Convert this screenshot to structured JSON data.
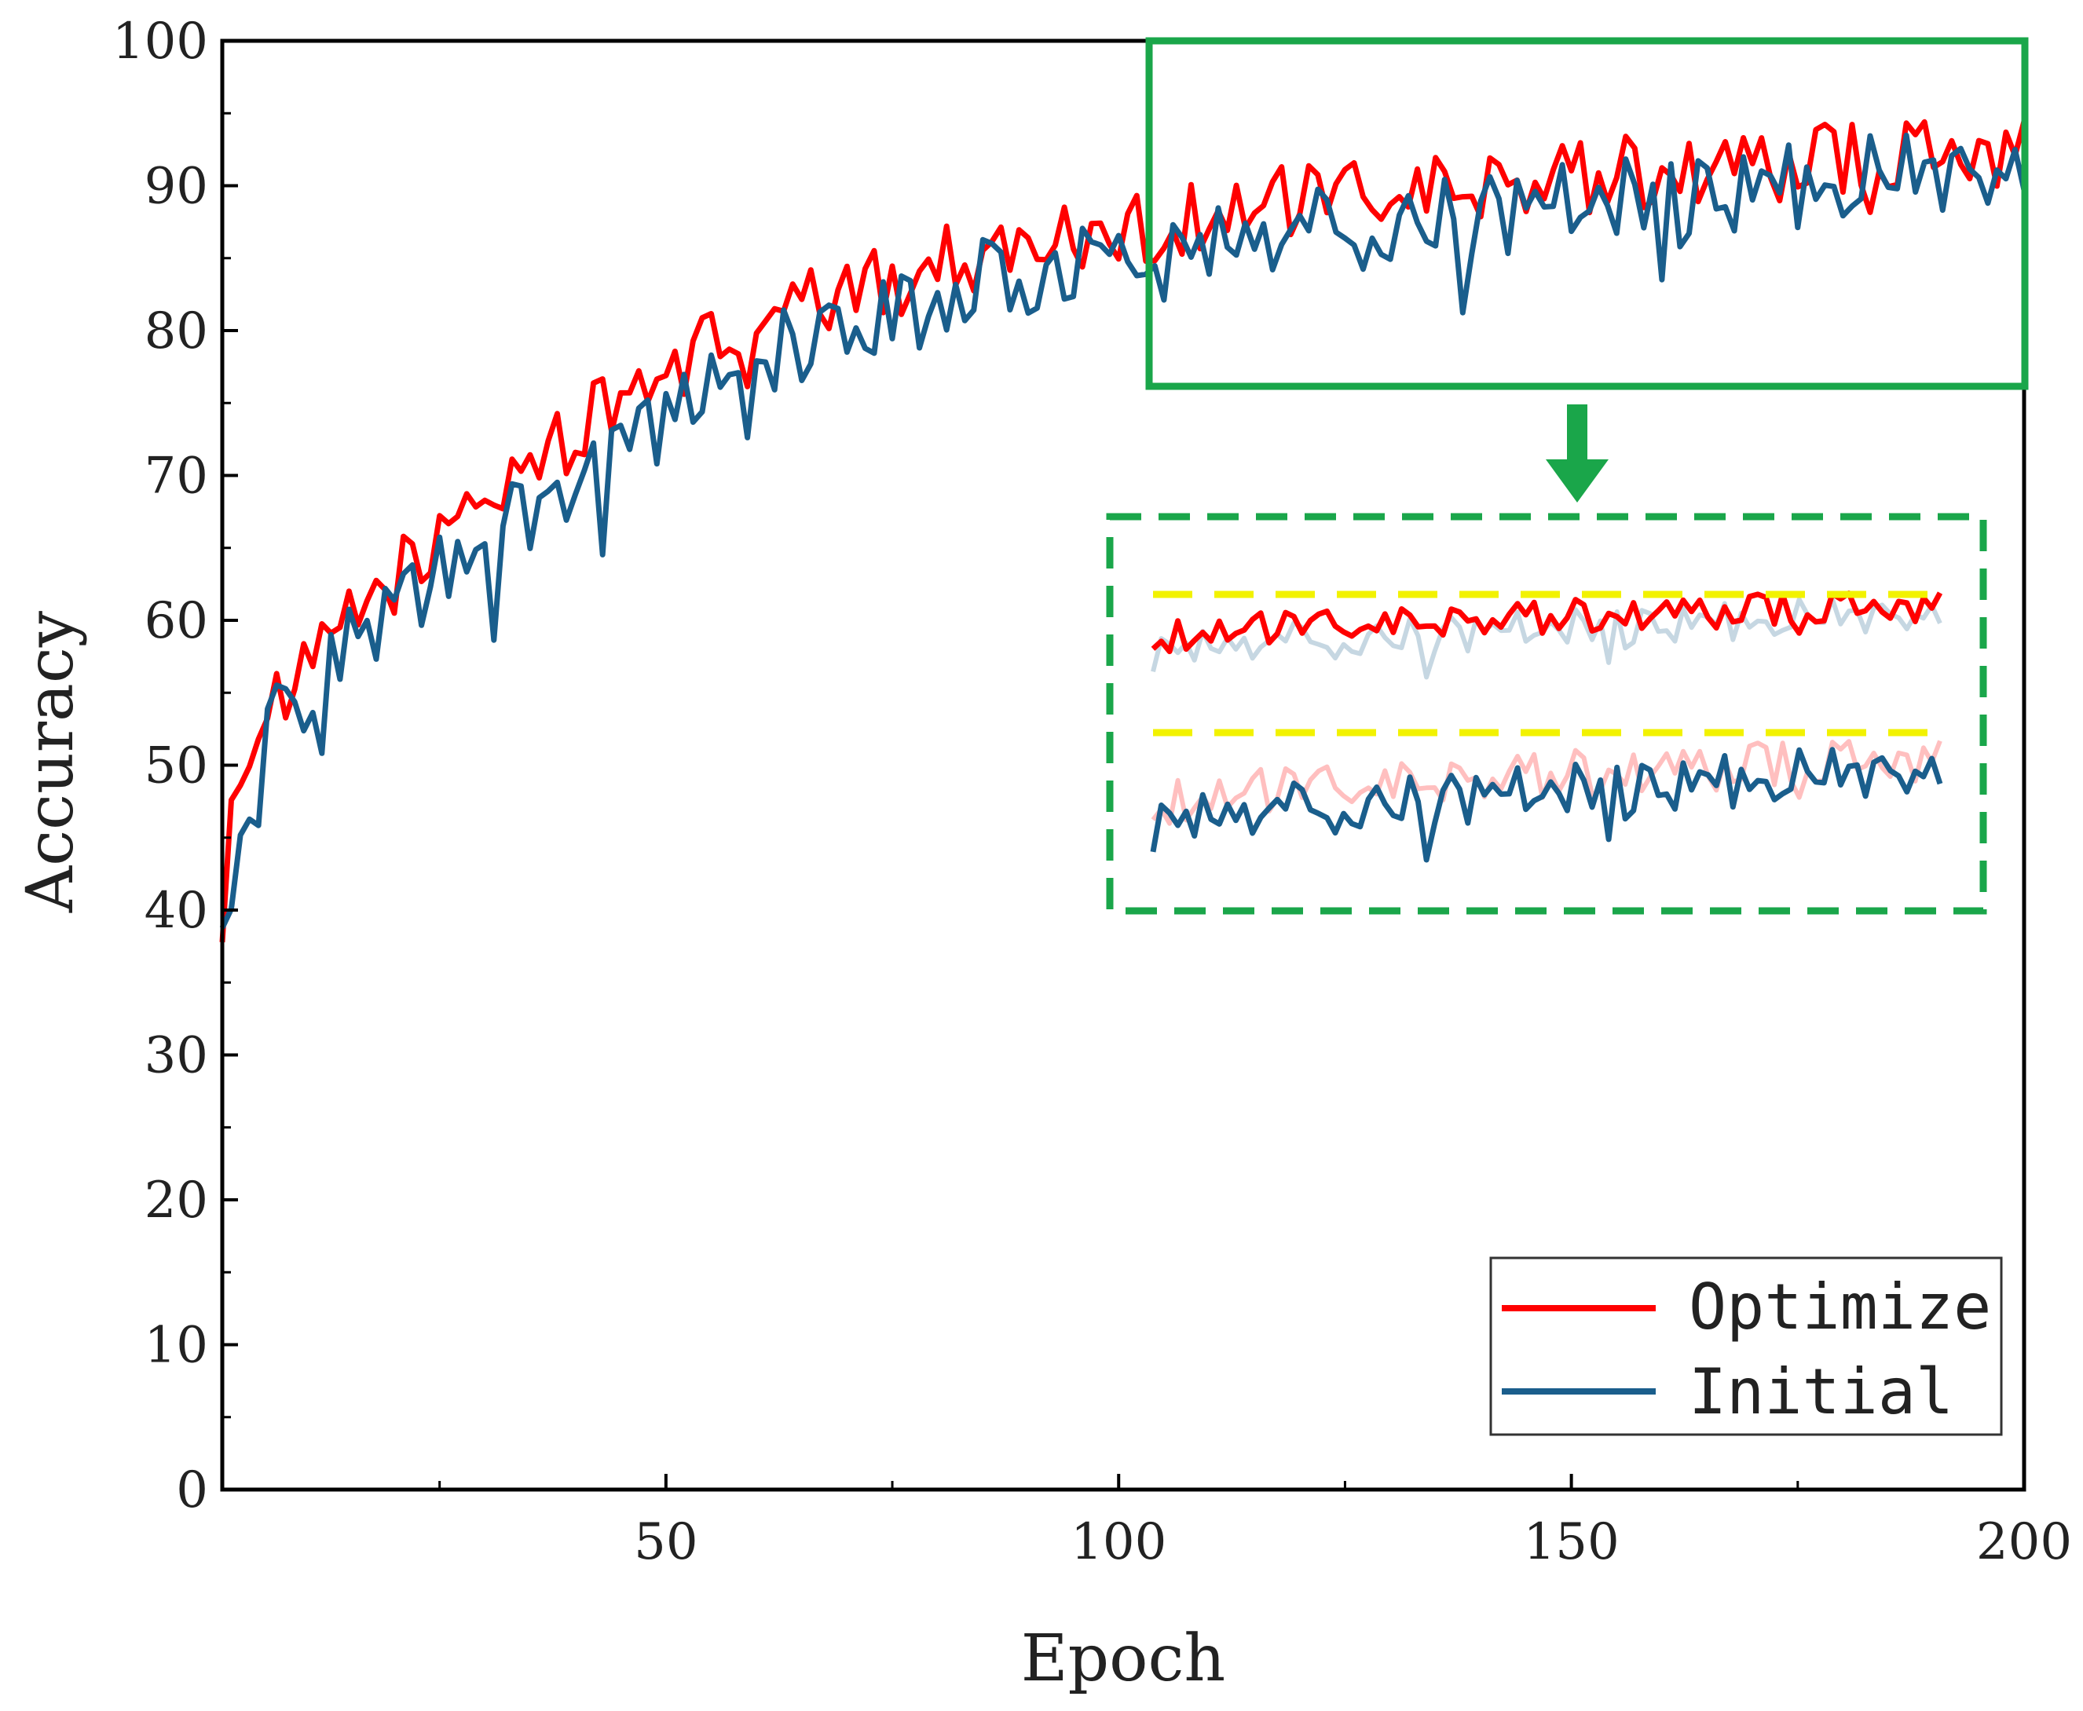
{
  "chart_data": {
    "type": "line",
    "title": "",
    "xlabel": "Epoch",
    "ylabel": "Accuracy",
    "xlim": [
      1,
      200
    ],
    "ylim": [
      0,
      100
    ],
    "x_major_ticks": [
      50,
      100,
      150,
      200
    ],
    "x_tick_labels": [
      "50",
      "100",
      "150",
      "200"
    ],
    "x_minor_ticks": [
      25,
      75,
      125,
      175
    ],
    "y_major_ticks": [
      0,
      10,
      20,
      30,
      40,
      50,
      60,
      70,
      80,
      90,
      100
    ],
    "y_tick_labels": [
      "0",
      "10",
      "20",
      "30",
      "40",
      "50",
      "60",
      "70",
      "80",
      "90",
      "100"
    ],
    "grid": false,
    "legend_position": "bottom-right",
    "colors": {
      "optimize": "#ff0000",
      "initial": "#1a5e8c",
      "zoom_box": "#1aa64a",
      "reference_line": "#f2f200"
    },
    "series": [
      {
        "name": "Optimize",
        "color": "#ff0000",
        "anchors_x": [
          1,
          3,
          6,
          10,
          15,
          20,
          25,
          30,
          35,
          40,
          45,
          50,
          55,
          60,
          65,
          70,
          75,
          80,
          85,
          90,
          95,
          100,
          105,
          110,
          115,
          120,
          125,
          130,
          135,
          140,
          145,
          150,
          155,
          160,
          165,
          170,
          175,
          180,
          185,
          190,
          195,
          200
        ],
        "anchors_y": [
          40,
          51,
          53,
          56,
          60,
          63,
          66,
          68.5,
          71,
          73,
          75,
          77.5,
          79,
          80.5,
          81.5,
          82.5,
          83.5,
          84.5,
          85.5,
          86,
          86.5,
          87,
          87.5,
          88,
          88.5,
          89,
          89,
          89.5,
          89.5,
          90,
          90.5,
          90.5,
          91,
          91,
          91,
          91.5,
          91.5,
          92,
          92,
          92,
          92.5,
          92.5
        ],
        "noise_amplitude": 2.6
      },
      {
        "name": "Initial",
        "color": "#1a5e8c",
        "anchors_x": [
          1,
          3,
          6,
          10,
          15,
          20,
          25,
          30,
          35,
          40,
          45,
          50,
          55,
          60,
          65,
          70,
          75,
          80,
          85,
          90,
          95,
          100,
          105,
          110,
          115,
          120,
          125,
          130,
          135,
          140,
          145,
          150,
          155,
          160,
          165,
          170,
          175,
          180,
          185,
          190,
          195,
          200
        ],
        "anchors_y": [
          38,
          47,
          52,
          55,
          59,
          60,
          63,
          65,
          67.5,
          69.5,
          71.5,
          74,
          76,
          78,
          79.5,
          80.5,
          81.5,
          82.5,
          83.5,
          84.5,
          85,
          85.5,
          86,
          86,
          86.5,
          87,
          87,
          87.5,
          88,
          88,
          88.5,
          89,
          89,
          89.5,
          89.5,
          90,
          90,
          90.5,
          90.5,
          91,
          91,
          91
        ],
        "noise_amplitude": 3.0
      }
    ],
    "zoom_region": {
      "x_range": [
        105,
        200
      ],
      "y_range": [
        76,
        100
      ]
    },
    "legend": {
      "entries": [
        "Optimize",
        "Initial"
      ]
    }
  }
}
